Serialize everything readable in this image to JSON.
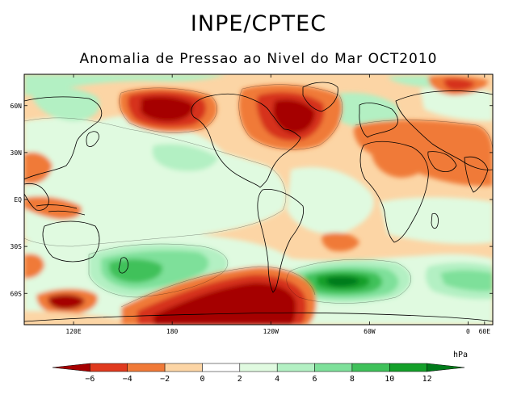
{
  "header": {
    "title": "INPE/CPTEC",
    "subtitle": "Anomalia de Pressao ao Nivel do Mar OCT2010"
  },
  "map": {
    "lat_labels": [
      "60N",
      "30N",
      "EQ",
      "30S",
      "60S"
    ],
    "lon_labels": [
      "120E",
      "180",
      "120W",
      "60W",
      "0",
      "60E"
    ],
    "lon_range": [
      90,
      375
    ],
    "lat_range": [
      -80,
      80
    ]
  },
  "colorbar": {
    "unit_label": "hPa",
    "tick_labels": [
      "-6",
      "-4",
      "-2",
      "0",
      "2",
      "4",
      "6",
      "8",
      "10",
      "12"
    ],
    "colors": [
      "#a50000",
      "#e03a1e",
      "#f07a38",
      "#fcd5a5",
      "#ffffff",
      "#e0fae0",
      "#b3f0c3",
      "#7ee09a",
      "#3fc15a",
      "#14a02a",
      "#007a1a"
    ]
  },
  "anomaly_colors": {
    "neg6": "#a50000",
    "neg4": "#d6301e",
    "neg2": "#f07a38",
    "neg1": "#fcd5a5",
    "zero": "#ffffff",
    "pos1": "#e0fae0",
    "pos2": "#b3f0c3",
    "pos4": "#7ee09a",
    "pos6": "#3fc15a",
    "pos8": "#14a02a",
    "pos10": "#007a1a"
  }
}
